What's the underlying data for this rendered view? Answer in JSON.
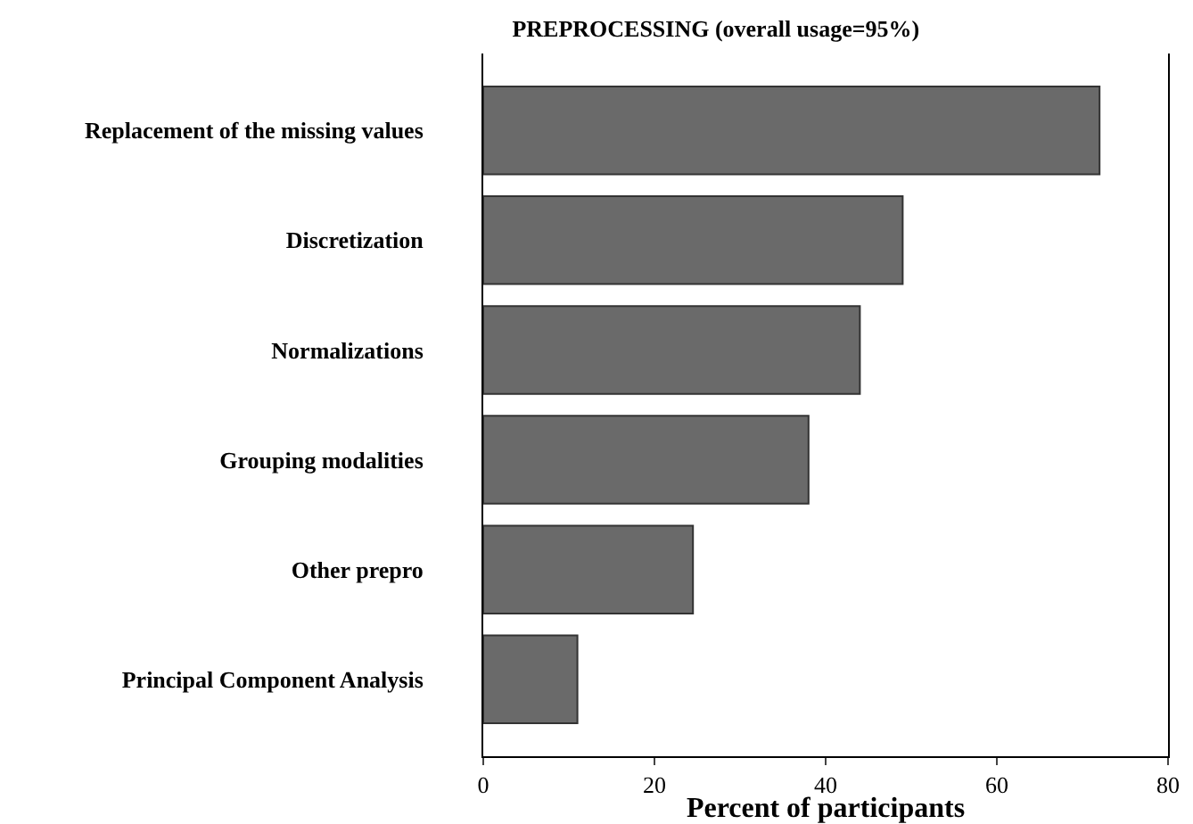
{
  "chart_data": {
    "type": "bar",
    "orientation": "horizontal",
    "title": "PREPROCESSING (overall usage=95%)",
    "xlabel": "Percent of participants",
    "categories": [
      "Replacement of the missing values",
      "Discretization",
      "Normalizations",
      "Grouping modalities",
      "Other prepro",
      "Principal Component Analysis"
    ],
    "values": [
      72,
      49,
      44,
      38,
      24.5,
      11
    ],
    "color": "#6a6a6a",
    "xlim": [
      0,
      80
    ],
    "xticks": [
      0,
      20,
      40,
      60,
      80
    ],
    "grid": false
  }
}
